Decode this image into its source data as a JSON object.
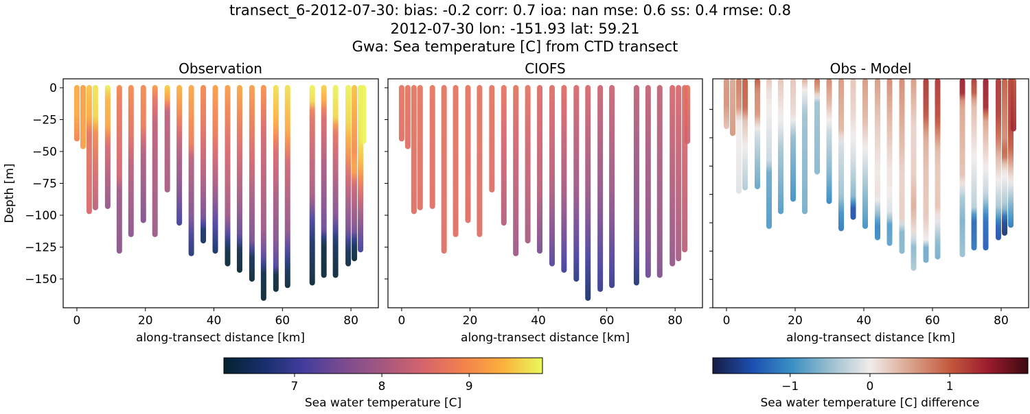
{
  "figure": {
    "title_lines": [
      "transect_6-2012-07-30: bias: -0.2  corr: 0.7  ioa: nan  mse: 0.6  ss: 0.4  rmse: 0.8",
      "2012-07-30 lon: -151.93 lat: 59.21",
      "Gwa: Sea temperature [C] from CTD transect"
    ]
  },
  "chart_data": [
    {
      "type": "scatter",
      "title": "Observation",
      "xlabel": "along-transect distance [km]",
      "ylabel": "Depth [m]",
      "xlim": [
        -4,
        88
      ],
      "ylim": [
        -172.6,
        7
      ],
      "xticks": [
        0,
        20,
        40,
        60,
        80
      ],
      "yticks": [
        0,
        -25,
        -50,
        -75,
        -100,
        -125,
        -150
      ],
      "colormap": "thermal",
      "source": "obs"
    },
    {
      "type": "scatter",
      "title": "CIOFS",
      "xlabel": "along-transect distance [km]",
      "xlim": [
        -4,
        88
      ],
      "ylim": [
        -172.6,
        7
      ],
      "xticks": [
        0,
        20,
        40,
        60,
        80
      ],
      "yticks": [
        0,
        -25,
        -50,
        -75,
        -100,
        -125,
        -150
      ],
      "colormap": "thermal",
      "source": "model"
    },
    {
      "type": "scatter",
      "title": "Obs - Model",
      "xlabel": "along-transect distance [km]",
      "xlim": [
        -4,
        88
      ],
      "ylim": [
        -200,
        2
      ],
      "xticks": [
        0,
        20,
        40,
        60,
        80
      ],
      "yticks": [
        -25,
        -50,
        -75,
        -100,
        -125,
        -150,
        -175,
        -200
      ],
      "colormap": "balance",
      "source": "diff"
    }
  ],
  "stations": [
    {
      "x": 0,
      "depth": 40,
      "obs": [
        [
          0,
          9.3
        ],
        [
          20,
          9.3
        ],
        [
          40,
          8.9
        ]
      ],
      "model": [
        [
          0,
          8.7
        ],
        [
          40,
          8.6
        ]
      ]
    },
    {
      "x": 1.8,
      "depth": 46,
      "obs": [
        [
          0,
          9.2
        ],
        [
          46,
          9.2
        ]
      ],
      "model": [
        [
          0,
          8.7
        ],
        [
          46,
          8.6
        ]
      ]
    },
    {
      "x": 3.6,
      "depth": 97,
      "obs": [
        [
          0,
          9.5
        ],
        [
          25,
          9.3
        ],
        [
          35,
          8.7
        ],
        [
          97,
          8.5
        ]
      ],
      "model": [
        [
          0,
          8.7
        ],
        [
          97,
          8.6
        ]
      ]
    },
    {
      "x": 5.4,
      "depth": 94,
      "obs": [
        [
          0,
          9.7
        ],
        [
          25,
          9.6
        ],
        [
          35,
          9.0
        ],
        [
          60,
          8.6
        ],
        [
          94,
          8.2
        ]
      ],
      "model": [
        [
          0,
          8.7
        ],
        [
          94,
          8.6
        ]
      ]
    },
    {
      "x": 9,
      "depth": 93,
      "obs": [
        [
          0,
          9.8
        ],
        [
          10,
          9.4
        ],
        [
          30,
          9.3
        ],
        [
          45,
          8.5
        ],
        [
          70,
          8.1
        ],
        [
          93,
          7.8
        ]
      ],
      "model": [
        [
          0,
          8.7
        ],
        [
          93,
          8.6
        ]
      ]
    },
    {
      "x": 12.4,
      "depth": 128,
      "obs": [
        [
          0,
          9.0
        ],
        [
          10,
          8.8
        ],
        [
          70,
          8.4
        ],
        [
          80,
          7.9
        ],
        [
          128,
          7.7
        ]
      ],
      "model": [
        [
          0,
          8.7
        ],
        [
          128,
          8.6
        ]
      ]
    },
    {
      "x": 15.8,
      "depth": 115,
      "obs": [
        [
          0,
          9.0
        ],
        [
          40,
          8.6
        ],
        [
          60,
          8.2
        ],
        [
          115,
          7.7
        ]
      ],
      "model": [
        [
          0,
          8.7
        ],
        [
          115,
          8.6
        ]
      ]
    },
    {
      "x": 19.4,
      "depth": 104,
      "obs": [
        [
          0,
          9.0
        ],
        [
          30,
          8.8
        ],
        [
          50,
          8.1
        ],
        [
          104,
          7.6
        ]
      ],
      "model": [
        [
          0,
          8.7
        ],
        [
          104,
          8.6
        ]
      ]
    },
    {
      "x": 22.8,
      "depth": 115,
      "obs": [
        [
          0,
          9.2
        ],
        [
          10,
          8.7
        ],
        [
          30,
          8.2
        ],
        [
          115,
          7.9
        ]
      ],
      "model": [
        [
          0,
          8.7
        ],
        [
          115,
          8.6
        ]
      ]
    },
    {
      "x": 26.4,
      "depth": 80,
      "obs": [
        [
          0,
          9.6
        ],
        [
          10,
          9.2
        ],
        [
          20,
          8.2
        ],
        [
          80,
          8.0
        ]
      ],
      "model": [
        [
          0,
          8.7
        ],
        [
          80,
          8.6
        ]
      ]
    },
    {
      "x": 29.9,
      "depth": 106,
      "obs": [
        [
          0,
          9.4
        ],
        [
          20,
          9.0
        ],
        [
          45,
          8.2
        ],
        [
          80,
          7.6
        ],
        [
          106,
          7.0
        ]
      ],
      "model": [
        [
          0,
          8.7
        ],
        [
          106,
          8.1
        ]
      ]
    },
    {
      "x": 33.4,
      "depth": 130,
      "obs": [
        [
          0,
          9.3
        ],
        [
          45,
          8.8
        ],
        [
          55,
          8.2
        ],
        [
          100,
          7.6
        ],
        [
          115,
          7.0
        ],
        [
          130,
          6.7
        ]
      ],
      "model": [
        [
          0,
          8.7
        ],
        [
          130,
          7.9
        ]
      ]
    },
    {
      "x": 36.9,
      "depth": 120,
      "obs": [
        [
          0,
          9.0
        ],
        [
          30,
          8.7
        ],
        [
          70,
          8.1
        ],
        [
          100,
          7.5
        ],
        [
          110,
          6.6
        ],
        [
          120,
          6.5
        ]
      ],
      "model": [
        [
          0,
          8.7
        ],
        [
          120,
          8.0
        ]
      ]
    },
    {
      "x": 40.4,
      "depth": 128,
      "obs": [
        [
          0,
          9.2
        ],
        [
          35,
          8.8
        ],
        [
          80,
          7.9
        ],
        [
          100,
          7.3
        ],
        [
          128,
          6.5
        ]
      ],
      "model": [
        [
          0,
          8.6
        ],
        [
          80,
          8.2
        ],
        [
          128,
          7.5
        ]
      ]
    },
    {
      "x": 44,
      "depth": 138,
      "obs": [
        [
          0,
          9.2
        ],
        [
          40,
          8.6
        ],
        [
          100,
          7.9
        ],
        [
          115,
          7.0
        ],
        [
          125,
          6.3
        ],
        [
          138,
          6.2
        ]
      ],
      "model": [
        [
          0,
          8.6
        ],
        [
          80,
          8.1
        ],
        [
          138,
          7.2
        ]
      ]
    },
    {
      "x": 47.5,
      "depth": 143,
      "obs": [
        [
          0,
          9.3
        ],
        [
          30,
          8.8
        ],
        [
          90,
          7.9
        ],
        [
          115,
          7.3
        ],
        [
          125,
          6.4
        ],
        [
          143,
          6.2
        ]
      ],
      "model": [
        [
          0,
          8.6
        ],
        [
          80,
          8.0
        ],
        [
          143,
          7.0
        ]
      ]
    },
    {
      "x": 51.1,
      "depth": 150,
      "obs": [
        [
          0,
          9.2
        ],
        [
          60,
          8.4
        ],
        [
          120,
          7.5
        ],
        [
          130,
          6.5
        ],
        [
          150,
          6.2
        ]
      ],
      "model": [
        [
          0,
          8.5
        ],
        [
          80,
          7.9
        ],
        [
          150,
          6.8
        ]
      ]
    },
    {
      "x": 54.5,
      "depth": 165,
      "obs": [
        [
          0,
          9.1
        ],
        [
          40,
          8.4
        ],
        [
          110,
          7.9
        ],
        [
          130,
          7.3
        ],
        [
          145,
          6.3
        ],
        [
          165,
          6.2
        ]
      ],
      "model": [
        [
          0,
          8.5
        ],
        [
          80,
          7.9
        ],
        [
          165,
          6.6
        ]
      ]
    },
    {
      "x": 58.1,
      "depth": 158,
      "obs": [
        [
          0,
          9.7
        ],
        [
          30,
          9.3
        ],
        [
          50,
          8.5
        ],
        [
          120,
          7.6
        ],
        [
          140,
          7.1
        ],
        [
          145,
          6.3
        ],
        [
          158,
          6.2
        ]
      ],
      "model": [
        [
          0,
          8.4
        ],
        [
          80,
          7.8
        ],
        [
          158,
          6.9
        ]
      ]
    },
    {
      "x": 61.5,
      "depth": 155,
      "obs": [
        [
          0,
          9.7
        ],
        [
          35,
          9.3
        ],
        [
          60,
          8.4
        ],
        [
          110,
          7.8
        ],
        [
          140,
          6.5
        ],
        [
          155,
          6.2
        ]
      ],
      "model": [
        [
          0,
          8.4
        ],
        [
          80,
          7.9
        ],
        [
          155,
          6.9
        ]
      ]
    },
    {
      "x": 68.7,
      "depth": 153,
      "obs": [
        [
          0,
          9.8
        ],
        [
          15,
          9.6
        ],
        [
          20,
          8.7
        ],
        [
          85,
          8.0
        ],
        [
          100,
          7.2
        ],
        [
          120,
          6.6
        ],
        [
          153,
          6.2
        ]
      ],
      "model": [
        [
          0,
          8.3
        ],
        [
          100,
          7.6
        ],
        [
          153,
          6.7
        ]
      ]
    },
    {
      "x": 72.1,
      "depth": 147,
      "obs": [
        [
          0,
          9.6
        ],
        [
          15,
          9.2
        ],
        [
          20,
          8.6
        ],
        [
          110,
          7.4
        ],
        [
          120,
          6.3
        ],
        [
          147,
          6.2
        ]
      ],
      "model": [
        [
          0,
          8.3
        ],
        [
          100,
          7.8
        ],
        [
          147,
          7.4
        ]
      ]
    },
    {
      "x": 75.5,
      "depth": 147,
      "obs": [
        [
          0,
          9.8
        ],
        [
          25,
          9.6
        ],
        [
          35,
          8.7
        ],
        [
          100,
          7.6
        ],
        [
          120,
          6.5
        ],
        [
          147,
          6.2
        ]
      ],
      "model": [
        [
          0,
          8.3
        ],
        [
          100,
          7.9
        ],
        [
          147,
          7.6
        ]
      ]
    },
    {
      "x": 79.2,
      "depth": 138,
      "obs": [
        [
          0,
          9.8
        ],
        [
          30,
          9.6
        ],
        [
          55,
          9.0
        ],
        [
          65,
          8.6
        ],
        [
          110,
          7.5
        ],
        [
          125,
          6.5
        ],
        [
          138,
          6.3
        ]
      ],
      "model": [
        [
          0,
          8.5
        ],
        [
          138,
          7.8
        ]
      ]
    },
    {
      "x": 81,
      "depth": 134,
      "obs": [
        [
          0,
          9.5
        ],
        [
          50,
          9.0
        ],
        [
          65,
          9.3
        ],
        [
          75,
          8.4
        ],
        [
          110,
          7.6
        ],
        [
          120,
          6.5
        ],
        [
          134,
          6.2
        ]
      ],
      "model": [
        [
          0,
          8.5
        ],
        [
          134,
          8.0
        ]
      ]
    },
    {
      "x": 82.8,
      "depth": 127,
      "obs": [
        [
          0,
          9.8
        ],
        [
          40,
          9.7
        ],
        [
          60,
          9.4
        ],
        [
          80,
          8.6
        ],
        [
          110,
          7.5
        ],
        [
          127,
          7.0
        ]
      ],
      "model": [
        [
          0,
          8.6
        ],
        [
          127,
          8.2
        ]
      ]
    },
    {
      "x": 83.6,
      "depth": 42,
      "obs": [
        [
          0,
          9.8
        ],
        [
          42,
          9.8
        ]
      ],
      "model": [
        [
          0,
          8.7
        ],
        [
          42,
          8.4
        ]
      ]
    }
  ],
  "colorbars": [
    {
      "label": "Sea water temperature [C]",
      "range": [
        6.19,
        9.84
      ],
      "ticks": [
        7,
        8,
        9
      ],
      "tick_labels": [
        "7",
        "8",
        "9"
      ],
      "colors": [
        "#03222f",
        "#162f6c",
        "#433d9d",
        "#7a4b8f",
        "#a5587f",
        "#d5646b",
        "#f2814d",
        "#fbb03c",
        "#e8fa5b"
      ]
    },
    {
      "label": "Sea water temperature [C] difference",
      "range": [
        -1.97,
        1.98
      ],
      "ticks": [
        -1,
        0,
        1
      ],
      "tick_labels": [
        "−1",
        "0",
        "1"
      ],
      "colors": [
        "#181c43",
        "#1b4fb0",
        "#3a8fc4",
        "#9cc0cf",
        "#f1ecec",
        "#dba58e",
        "#c45a3e",
        "#9a1b2c",
        "#3c0912"
      ]
    }
  ]
}
